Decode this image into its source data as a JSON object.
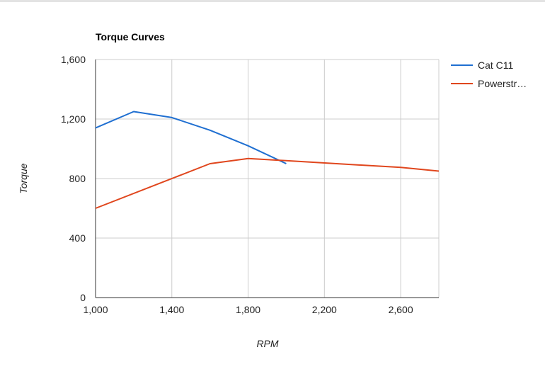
{
  "chart_data": {
    "type": "line",
    "title": "Torque Curves",
    "xlabel": "RPM",
    "ylabel": "Torque",
    "xlim": [
      1000,
      2800
    ],
    "ylim": [
      0,
      1600
    ],
    "x_ticks": [
      1000,
      1400,
      1800,
      2200,
      2600
    ],
    "x_tick_labels": [
      "1,000",
      "1,400",
      "1,800",
      "2,200",
      "2,600"
    ],
    "y_ticks": [
      0,
      400,
      800,
      1200,
      1600
    ],
    "y_tick_labels": [
      "0",
      "400",
      "800",
      "1,200",
      "1,600"
    ],
    "grid": true,
    "legend_position": "right",
    "series": [
      {
        "name": "Cat C11",
        "color": "#1f6fd1",
        "points": [
          [
            1000,
            1140
          ],
          [
            1200,
            1250
          ],
          [
            1400,
            1210
          ],
          [
            1600,
            1125
          ],
          [
            1800,
            1020
          ],
          [
            2000,
            900
          ]
        ]
      },
      {
        "name": "Powerstr…",
        "color": "#e0461d",
        "points": [
          [
            1000,
            600
          ],
          [
            1400,
            800
          ],
          [
            1600,
            900
          ],
          [
            1800,
            935
          ],
          [
            2000,
            920
          ],
          [
            2600,
            875
          ],
          [
            2800,
            850
          ]
        ]
      }
    ]
  }
}
